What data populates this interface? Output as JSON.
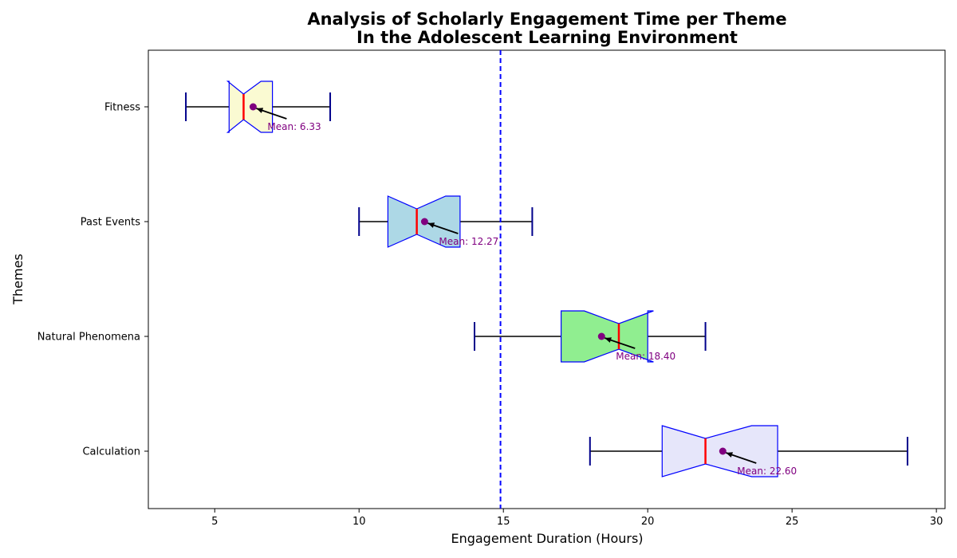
{
  "chart_data": {
    "type": "boxplot",
    "orientation": "horizontal",
    "notched": true,
    "title_line1": "Analysis of Scholarly Engagement Time per Theme",
    "title_line2": "In the Adolescent Learning Environment",
    "xlabel": "Engagement Duration (Hours)",
    "ylabel": "Themes",
    "xlim": [
      2.7,
      30.3
    ],
    "xticks": [
      5,
      10,
      15,
      20,
      25,
      30
    ],
    "reference_line": {
      "x": 14.9,
      "color": "#0000ff",
      "style": "dashed"
    },
    "median_color": "#ff0000",
    "mean_marker_color": "#800080",
    "box_edge_color": "#0000ff",
    "whisker_color": "#000000",
    "cap_color": "#00008b",
    "categories": [
      "Calculation",
      "Natural Phenomena",
      "Past Events",
      "Fitness"
    ],
    "series": [
      {
        "category": "Calculation",
        "whisker_low": 18,
        "q1": 20.5,
        "median": 22,
        "q3": 24.5,
        "whisker_high": 29,
        "notch_low": 20.5,
        "notch_high": 23.6,
        "mean": 22.6,
        "mean_label": "Mean: 22.60",
        "fill": "#e6e6fa"
      },
      {
        "category": "Natural Phenomena",
        "whisker_low": 14,
        "q1": 17,
        "median": 19,
        "q3": 20,
        "whisker_high": 22,
        "notch_low": 17.8,
        "notch_high": 20.2,
        "mean": 18.4,
        "mean_label": "Mean: 18.40",
        "fill": "#90ee90"
      },
      {
        "category": "Past Events",
        "whisker_low": 10,
        "q1": 11,
        "median": 12,
        "q3": 13.5,
        "whisker_high": 16,
        "notch_low": 11,
        "notch_high": 13,
        "mean": 12.27,
        "mean_label": "Mean: 12.27",
        "fill": "#add8e6"
      },
      {
        "category": "Fitness",
        "whisker_low": 4,
        "q1": 5.5,
        "median": 6,
        "q3": 7,
        "whisker_high": 9,
        "notch_low": 5.45,
        "notch_high": 6.6,
        "mean": 6.33,
        "mean_label": "Mean: 6.33",
        "fill": "#fafad2"
      }
    ]
  }
}
